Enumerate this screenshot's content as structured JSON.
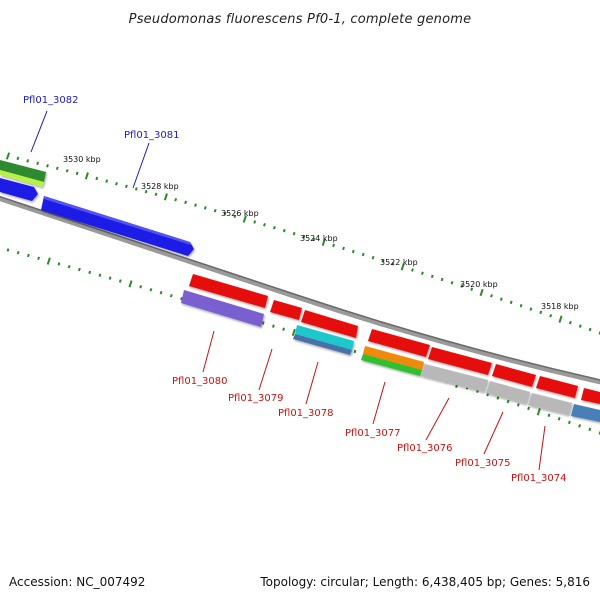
{
  "title": "Pseudomonas fluorescens Pf0-1, complete genome",
  "footer": {
    "accession": "Accession: NC_007492",
    "info": "Topology: circular; Length: 6,438,405 bp; Genes: 5,816"
  },
  "scale_labels": [
    "3530 kbp",
    "3528 kbp",
    "3526 kbp",
    "3524 kbp",
    "3522 kbp",
    "3520 kbp",
    "3518 kbp"
  ],
  "gene_labels": {
    "forward": [
      "Pfl01_3082",
      "Pfl01_3081"
    ],
    "reverse": [
      "Pfl01_3080",
      "Pfl01_3079",
      "Pfl01_3078",
      "Pfl01_3077",
      "Pfl01_3076",
      "Pfl01_3075",
      "Pfl01_3074"
    ]
  },
  "colors": {
    "forward_label": "#1a1acc",
    "reverse_label": "#cc1111",
    "backbone": "#808080",
    "tick": "#2a8a2a",
    "gene_blue": "#1f1fe6",
    "gene_red": "#e61010",
    "gene_purple": "#7a5fd0",
    "gene_cyan": "#1fc8cc",
    "gene_steel": "#4a6fa8",
    "gene_orange": "#f08a10",
    "gene_green": "#2ec02e",
    "gene_lime": "#b8f04a",
    "gene_darkgreen": "#2f8a2f",
    "gene_gray": "#b8b8b8"
  }
}
